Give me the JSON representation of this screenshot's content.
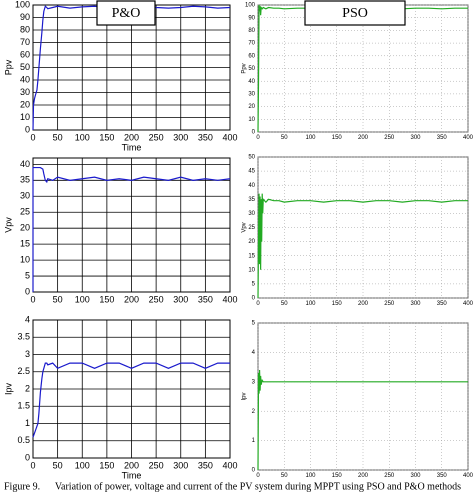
{
  "chart_data": [
    {
      "type": "line",
      "title": "P&O",
      "xlabel": "Time",
      "ylabel": "Ppv",
      "color": "#1a1acc",
      "grid": "solid",
      "x": [
        0,
        1,
        3,
        5,
        8,
        10,
        12,
        15,
        18,
        20,
        22,
        25,
        28,
        30,
        40,
        50,
        75,
        100,
        125,
        150,
        175,
        200,
        225,
        250,
        275,
        300,
        325,
        350,
        375,
        400
      ],
      "values": [
        0,
        20,
        25,
        28,
        32,
        40,
        50,
        65,
        78,
        88,
        95,
        99,
        98,
        97,
        98,
        99,
        97.5,
        98.5,
        99,
        98,
        97,
        98.5,
        99,
        98,
        97.5,
        98,
        99,
        98.5,
        97.5,
        98
      ],
      "xlim": [
        0,
        400
      ],
      "xticks": [
        0,
        50,
        100,
        150,
        200,
        250,
        300,
        350,
        400
      ],
      "ylim": [
        0,
        100
      ],
      "yticks": [
        0,
        10,
        20,
        30,
        40,
        50,
        60,
        70,
        80,
        90,
        100
      ]
    },
    {
      "type": "line",
      "title": "PSO",
      "ylabel": "Ppv",
      "color": "#22aa22",
      "grid": "dotted",
      "x": [
        0,
        1,
        2,
        3,
        4,
        5,
        6,
        8,
        10,
        15,
        20,
        30,
        40,
        50,
        75,
        100,
        125,
        150,
        175,
        200,
        225,
        250,
        275,
        300,
        325,
        350,
        375,
        400
      ],
      "values": [
        0,
        40,
        100,
        95,
        99,
        92,
        98,
        97,
        98,
        97,
        98,
        97.5,
        97.5,
        97,
        97.5,
        97.5,
        97,
        97.5,
        97.5,
        97,
        97.5,
        97.5,
        97,
        97.5,
        97.5,
        97,
        97.5,
        97.5
      ],
      "xlim": [
        0,
        400
      ],
      "xticks": [
        0,
        50,
        100,
        150,
        200,
        250,
        300,
        350,
        400
      ],
      "ylim": [
        0,
        100
      ],
      "yticks": [
        0,
        10,
        20,
        30,
        40,
        50,
        60,
        70,
        80,
        90,
        100
      ]
    },
    {
      "type": "line",
      "ylabel": "Vpv",
      "color": "#1a1acc",
      "grid": "solid",
      "x": [
        0,
        0,
        5,
        10,
        15,
        20,
        22,
        25,
        28,
        30,
        40,
        50,
        75,
        100,
        125,
        150,
        175,
        200,
        225,
        250,
        275,
        300,
        325,
        350,
        375,
        400
      ],
      "values": [
        0,
        39,
        39,
        39,
        39,
        38.5,
        37,
        35,
        34.5,
        35.5,
        35,
        36,
        35,
        35.5,
        36,
        35,
        35.5,
        35,
        36,
        35.5,
        35,
        36,
        35,
        35.5,
        35,
        35.5
      ],
      "xlim": [
        0,
        400
      ],
      "xticks": [
        0,
        50,
        100,
        150,
        200,
        250,
        300,
        350,
        400
      ],
      "ylim": [
        0,
        42
      ],
      "yticks": [
        0,
        5,
        10,
        15,
        20,
        25,
        30,
        35,
        40
      ]
    },
    {
      "type": "line",
      "ylabel": "Vpv",
      "color": "#22aa22",
      "grid": "dotted",
      "x": [
        0,
        1,
        2,
        3,
        4,
        5,
        6,
        7,
        8,
        9,
        10,
        15,
        20,
        30,
        40,
        50,
        75,
        100,
        125,
        150,
        175,
        200,
        225,
        250,
        275,
        300,
        325,
        350,
        375,
        400
      ],
      "values": [
        0,
        20,
        37,
        12,
        36,
        10,
        35,
        20,
        37,
        30,
        35,
        34,
        35,
        34.5,
        34.5,
        34,
        34.5,
        34.5,
        34,
        34.5,
        34.5,
        34,
        34.5,
        34.5,
        34,
        34.5,
        34.5,
        34,
        34.5,
        34.5
      ],
      "xlim": [
        0,
        400
      ],
      "xticks": [
        0,
        50,
        100,
        150,
        200,
        250,
        300,
        350,
        400
      ],
      "ylim": [
        0,
        50
      ],
      "yticks": [
        0,
        5,
        10,
        15,
        20,
        25,
        30,
        35,
        40,
        45,
        50
      ]
    },
    {
      "type": "line",
      "xlabel": "Time",
      "ylabel": "Ipv",
      "color": "#1a1acc",
      "grid": "solid",
      "x": [
        0,
        5,
        10,
        12,
        15,
        18,
        20,
        22,
        25,
        28,
        30,
        40,
        50,
        75,
        100,
        125,
        150,
        175,
        200,
        225,
        250,
        275,
        300,
        325,
        350,
        375,
        400
      ],
      "values": [
        0.6,
        0.8,
        1,
        1.3,
        1.9,
        2.3,
        2.5,
        2.6,
        2.75,
        2.75,
        2.7,
        2.75,
        2.6,
        2.75,
        2.75,
        2.6,
        2.75,
        2.75,
        2.6,
        2.75,
        2.75,
        2.6,
        2.75,
        2.75,
        2.6,
        2.75,
        2.75
      ],
      "xlim": [
        0,
        400
      ],
      "xticks": [
        0,
        50,
        100,
        150,
        200,
        250,
        300,
        350,
        400
      ],
      "ylim": [
        0,
        4
      ],
      "yticks": [
        0,
        0.5,
        1,
        1.5,
        2,
        2.5,
        3,
        3.5,
        4
      ]
    },
    {
      "type": "line",
      "ylabel": "Ipv",
      "color": "#22aa22",
      "grid": "dotted",
      "x": [
        0,
        1,
        2,
        3,
        4,
        5,
        6,
        8,
        10,
        20,
        30,
        40,
        50,
        75,
        100,
        125,
        150,
        175,
        200,
        225,
        250,
        275,
        300,
        325,
        350,
        375,
        400
      ],
      "values": [
        0,
        3.3,
        2.6,
        3.4,
        2.7,
        3.2,
        2.9,
        3.05,
        3,
        3,
        3,
        3,
        3,
        3,
        3,
        3,
        3,
        3,
        3,
        3,
        3,
        3,
        3,
        3,
        3,
        3,
        3
      ],
      "xlim": [
        0,
        400
      ],
      "xticks": [
        0,
        50,
        100,
        150,
        200,
        250,
        300,
        350,
        400
      ],
      "ylim": [
        0,
        5
      ],
      "yticks": [
        0,
        1,
        2,
        3,
        4,
        5
      ]
    }
  ],
  "caption": "Figure 9.      Variation of power, voltage and current of the PV system during MPPT using PSO and P&O methods"
}
